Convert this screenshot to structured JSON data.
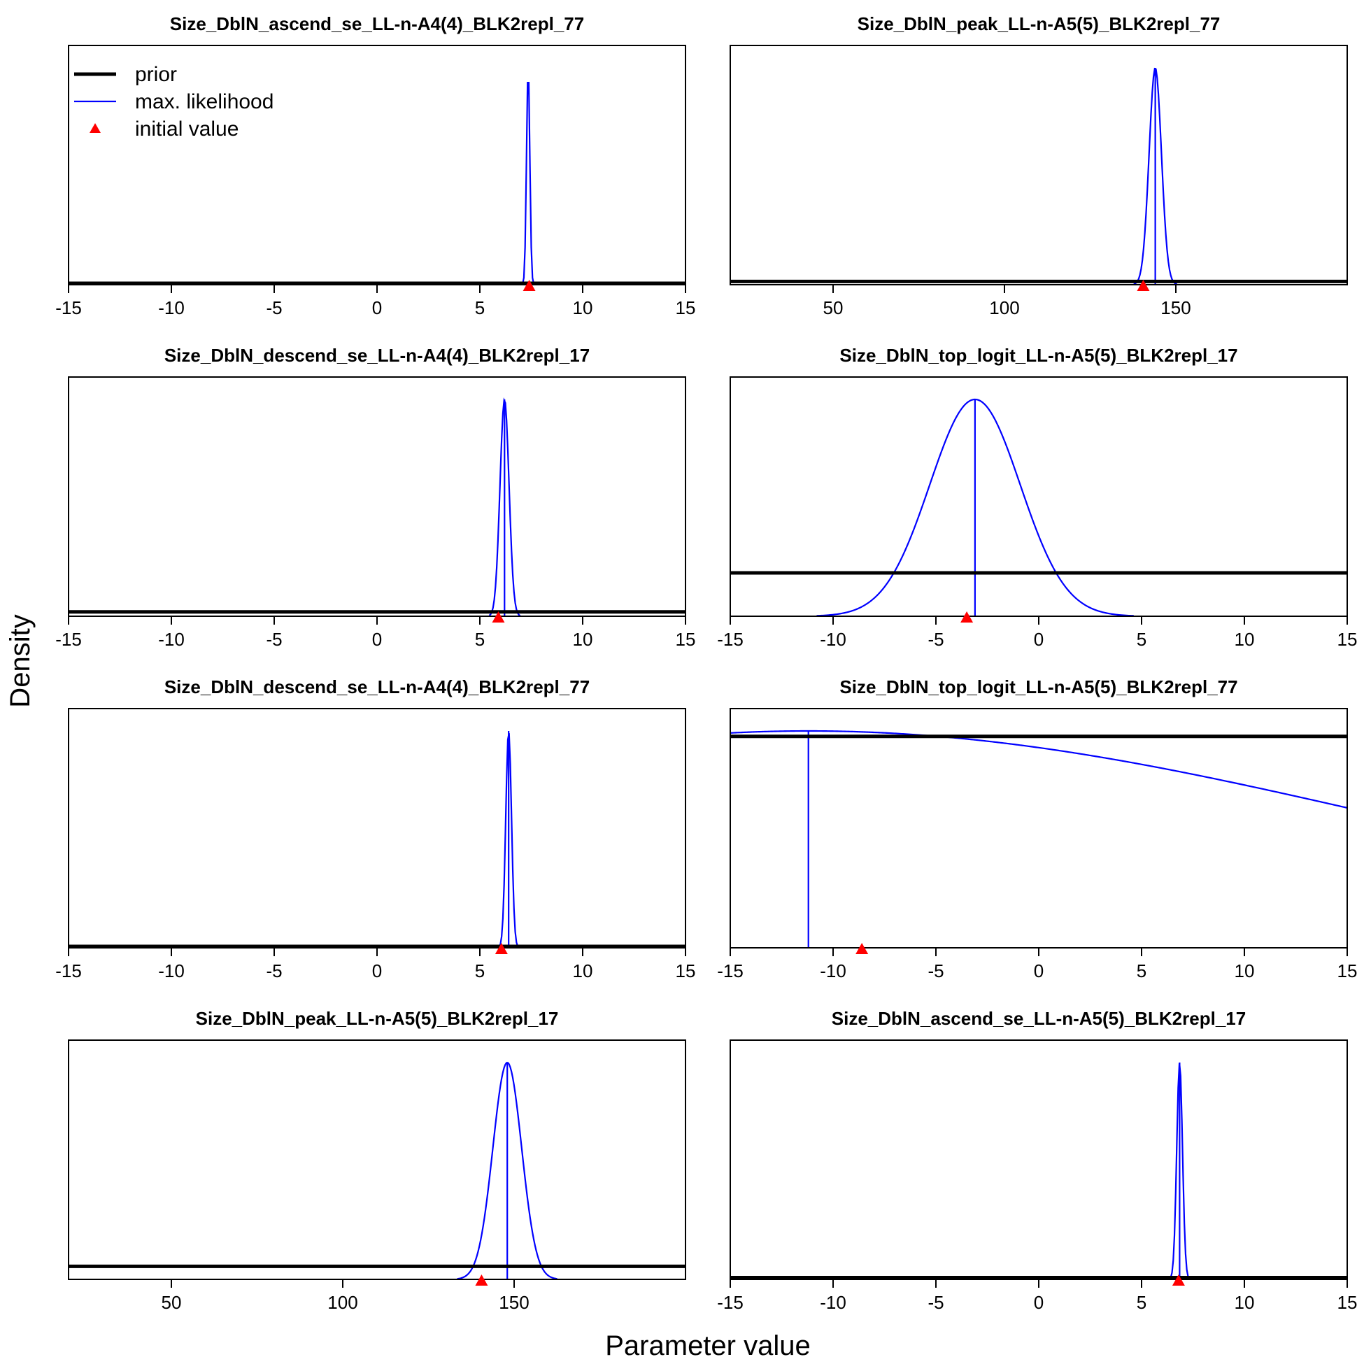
{
  "figure": {
    "xlabel": "Parameter value",
    "ylabel": "Density",
    "legend": {
      "entries": [
        {
          "label": "prior",
          "style": "thick-line",
          "color": "#000000"
        },
        {
          "label": "max. likelihood",
          "style": "thin-line",
          "color": "#0000ff"
        },
        {
          "label": "initial value",
          "style": "triangle",
          "color": "#ff0000"
        }
      ],
      "placement": "top-left of first panel"
    },
    "colors": {
      "prior": "#000000",
      "mle": "#0000ff",
      "initial": "#ff0000"
    }
  },
  "chart_data": [
    {
      "type": "line",
      "title": "Size_DblN_ascend_se_LL-n-A4(4)_BLK2repl_77",
      "xlim": [
        -15,
        15
      ],
      "xticks": [
        -15,
        -10,
        -5,
        0,
        5,
        10,
        15
      ],
      "prior_level": 0.0,
      "mle": 7.35,
      "sd": 0.08,
      "initial": 7.4,
      "mle_line": false
    },
    {
      "type": "line",
      "title": "Size_DblN_peak_LL-n-A5(5)_BLK2repl_77",
      "xlim": [
        20,
        200
      ],
      "xticks": [
        50,
        100,
        150
      ],
      "prior_level": 0.015,
      "mle": 144,
      "sd": 1.8,
      "initial": 140.5,
      "mle_line": true
    },
    {
      "type": "line",
      "title": "Size_DblN_descend_se_LL-n-A4(4)_BLK2repl_17",
      "xlim": [
        -15,
        15
      ],
      "xticks": [
        -15,
        -10,
        -5,
        0,
        5,
        10,
        15
      ],
      "prior_level": 0.02,
      "mle": 6.2,
      "sd": 0.22,
      "initial": 5.9,
      "mle_line": true
    },
    {
      "type": "line",
      "title": "Size_DblN_top_logit_LL-n-A5(5)_BLK2repl_17",
      "xlim": [
        -15,
        15
      ],
      "xticks": [
        -15,
        -10,
        -5,
        0,
        5,
        10,
        15
      ],
      "prior_level": 0.2,
      "mle": -3.1,
      "sd": 2.2,
      "initial": -3.5,
      "mle_line": true
    },
    {
      "type": "line",
      "title": "Size_DblN_descend_se_LL-n-A4(4)_BLK2repl_77",
      "xlim": [
        -15,
        15
      ],
      "xticks": [
        -15,
        -10,
        -5,
        0,
        5,
        10,
        15
      ],
      "prior_level": 0.004,
      "mle": 6.4,
      "sd": 0.14,
      "initial": 6.05,
      "mle_line": true
    },
    {
      "type": "line",
      "title": "Size_DblN_top_logit_LL-n-A5(5)_BLK2repl_77",
      "xlim": [
        -15,
        15
      ],
      "xticks": [
        -15,
        -10,
        -5,
        0,
        5,
        10,
        15
      ],
      "prior_level": 0.975,
      "mle": -11.2,
      "sd": 28,
      "initial": -8.6,
      "mle_line": true,
      "mle_full_height": true
    },
    {
      "type": "line",
      "title": "Size_DblN_peak_LL-n-A5(5)_BLK2repl_17",
      "xlim": [
        20,
        200
      ],
      "xticks": [
        50,
        100,
        150
      ],
      "prior_level": 0.06,
      "mle": 148,
      "sd": 4.2,
      "initial": 140.5,
      "mle_line": true
    },
    {
      "type": "line",
      "title": "Size_DblN_ascend_se_LL-n-A5(5)_BLK2repl_17",
      "xlim": [
        -15,
        15
      ],
      "xticks": [
        -15,
        -10,
        -5,
        0,
        5,
        10,
        15
      ],
      "prior_level": 0.008,
      "mle": 6.85,
      "sd": 0.14,
      "initial": 6.8,
      "mle_line": true
    }
  ]
}
